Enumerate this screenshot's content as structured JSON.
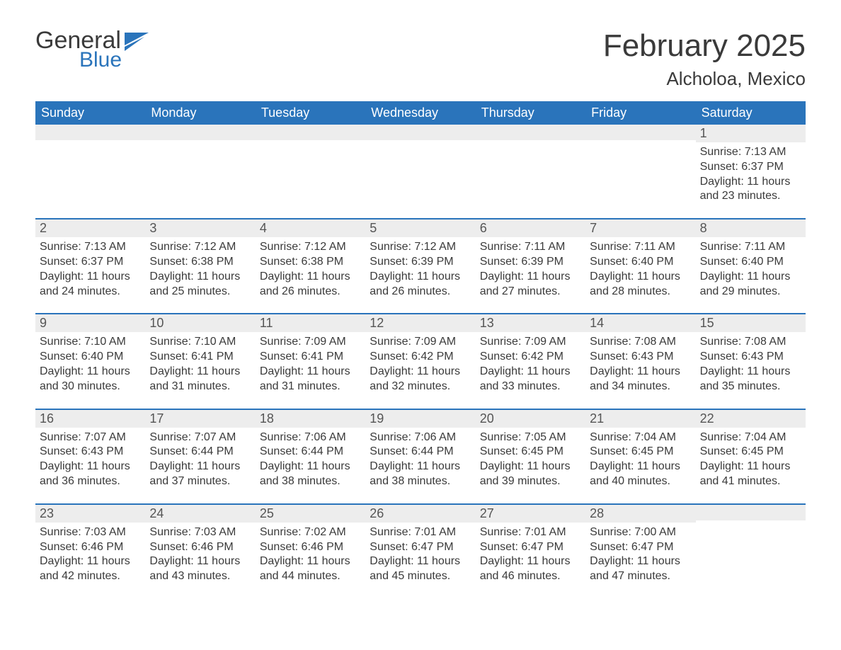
{
  "brand": {
    "general": "General",
    "blue": "Blue",
    "flag_color": "#2a74bb"
  },
  "title": {
    "month": "February 2025",
    "location": "Alcholoa, Mexico"
  },
  "colors": {
    "header_bg": "#2a74bb",
    "header_text": "#ffffff",
    "daynum_bg": "#ededed",
    "body_text": "#3a3a3a",
    "week_divider": "#2a74bb",
    "page_bg": "#ffffff"
  },
  "typography": {
    "month_title_fontsize": 44,
    "location_fontsize": 26,
    "dow_fontsize": 18,
    "daynum_fontsize": 18,
    "body_fontsize": 16,
    "font_family": "Arial"
  },
  "layout": {
    "columns": 7,
    "rows": 5
  },
  "dow": [
    "Sunday",
    "Monday",
    "Tuesday",
    "Wednesday",
    "Thursday",
    "Friday",
    "Saturday"
  ],
  "weeks": [
    [
      null,
      null,
      null,
      null,
      null,
      null,
      {
        "n": "1",
        "sunrise": "Sunrise: 7:13 AM",
        "sunset": "Sunset: 6:37 PM",
        "d1": "Daylight: 11 hours",
        "d2": "and 23 minutes."
      }
    ],
    [
      {
        "n": "2",
        "sunrise": "Sunrise: 7:13 AM",
        "sunset": "Sunset: 6:37 PM",
        "d1": "Daylight: 11 hours",
        "d2": "and 24 minutes."
      },
      {
        "n": "3",
        "sunrise": "Sunrise: 7:12 AM",
        "sunset": "Sunset: 6:38 PM",
        "d1": "Daylight: 11 hours",
        "d2": "and 25 minutes."
      },
      {
        "n": "4",
        "sunrise": "Sunrise: 7:12 AM",
        "sunset": "Sunset: 6:38 PM",
        "d1": "Daylight: 11 hours",
        "d2": "and 26 minutes."
      },
      {
        "n": "5",
        "sunrise": "Sunrise: 7:12 AM",
        "sunset": "Sunset: 6:39 PM",
        "d1": "Daylight: 11 hours",
        "d2": "and 26 minutes."
      },
      {
        "n": "6",
        "sunrise": "Sunrise: 7:11 AM",
        "sunset": "Sunset: 6:39 PM",
        "d1": "Daylight: 11 hours",
        "d2": "and 27 minutes."
      },
      {
        "n": "7",
        "sunrise": "Sunrise: 7:11 AM",
        "sunset": "Sunset: 6:40 PM",
        "d1": "Daylight: 11 hours",
        "d2": "and 28 minutes."
      },
      {
        "n": "8",
        "sunrise": "Sunrise: 7:11 AM",
        "sunset": "Sunset: 6:40 PM",
        "d1": "Daylight: 11 hours",
        "d2": "and 29 minutes."
      }
    ],
    [
      {
        "n": "9",
        "sunrise": "Sunrise: 7:10 AM",
        "sunset": "Sunset: 6:40 PM",
        "d1": "Daylight: 11 hours",
        "d2": "and 30 minutes."
      },
      {
        "n": "10",
        "sunrise": "Sunrise: 7:10 AM",
        "sunset": "Sunset: 6:41 PM",
        "d1": "Daylight: 11 hours",
        "d2": "and 31 minutes."
      },
      {
        "n": "11",
        "sunrise": "Sunrise: 7:09 AM",
        "sunset": "Sunset: 6:41 PM",
        "d1": "Daylight: 11 hours",
        "d2": "and 31 minutes."
      },
      {
        "n": "12",
        "sunrise": "Sunrise: 7:09 AM",
        "sunset": "Sunset: 6:42 PM",
        "d1": "Daylight: 11 hours",
        "d2": "and 32 minutes."
      },
      {
        "n": "13",
        "sunrise": "Sunrise: 7:09 AM",
        "sunset": "Sunset: 6:42 PM",
        "d1": "Daylight: 11 hours",
        "d2": "and 33 minutes."
      },
      {
        "n": "14",
        "sunrise": "Sunrise: 7:08 AM",
        "sunset": "Sunset: 6:43 PM",
        "d1": "Daylight: 11 hours",
        "d2": "and 34 minutes."
      },
      {
        "n": "15",
        "sunrise": "Sunrise: 7:08 AM",
        "sunset": "Sunset: 6:43 PM",
        "d1": "Daylight: 11 hours",
        "d2": "and 35 minutes."
      }
    ],
    [
      {
        "n": "16",
        "sunrise": "Sunrise: 7:07 AM",
        "sunset": "Sunset: 6:43 PM",
        "d1": "Daylight: 11 hours",
        "d2": "and 36 minutes."
      },
      {
        "n": "17",
        "sunrise": "Sunrise: 7:07 AM",
        "sunset": "Sunset: 6:44 PM",
        "d1": "Daylight: 11 hours",
        "d2": "and 37 minutes."
      },
      {
        "n": "18",
        "sunrise": "Sunrise: 7:06 AM",
        "sunset": "Sunset: 6:44 PM",
        "d1": "Daylight: 11 hours",
        "d2": "and 38 minutes."
      },
      {
        "n": "19",
        "sunrise": "Sunrise: 7:06 AM",
        "sunset": "Sunset: 6:44 PM",
        "d1": "Daylight: 11 hours",
        "d2": "and 38 minutes."
      },
      {
        "n": "20",
        "sunrise": "Sunrise: 7:05 AM",
        "sunset": "Sunset: 6:45 PM",
        "d1": "Daylight: 11 hours",
        "d2": "and 39 minutes."
      },
      {
        "n": "21",
        "sunrise": "Sunrise: 7:04 AM",
        "sunset": "Sunset: 6:45 PM",
        "d1": "Daylight: 11 hours",
        "d2": "and 40 minutes."
      },
      {
        "n": "22",
        "sunrise": "Sunrise: 7:04 AM",
        "sunset": "Sunset: 6:45 PM",
        "d1": "Daylight: 11 hours",
        "d2": "and 41 minutes."
      }
    ],
    [
      {
        "n": "23",
        "sunrise": "Sunrise: 7:03 AM",
        "sunset": "Sunset: 6:46 PM",
        "d1": "Daylight: 11 hours",
        "d2": "and 42 minutes."
      },
      {
        "n": "24",
        "sunrise": "Sunrise: 7:03 AM",
        "sunset": "Sunset: 6:46 PM",
        "d1": "Daylight: 11 hours",
        "d2": "and 43 minutes."
      },
      {
        "n": "25",
        "sunrise": "Sunrise: 7:02 AM",
        "sunset": "Sunset: 6:46 PM",
        "d1": "Daylight: 11 hours",
        "d2": "and 44 minutes."
      },
      {
        "n": "26",
        "sunrise": "Sunrise: 7:01 AM",
        "sunset": "Sunset: 6:47 PM",
        "d1": "Daylight: 11 hours",
        "d2": "and 45 minutes."
      },
      {
        "n": "27",
        "sunrise": "Sunrise: 7:01 AM",
        "sunset": "Sunset: 6:47 PM",
        "d1": "Daylight: 11 hours",
        "d2": "and 46 minutes."
      },
      {
        "n": "28",
        "sunrise": "Sunrise: 7:00 AM",
        "sunset": "Sunset: 6:47 PM",
        "d1": "Daylight: 11 hours",
        "d2": "and 47 minutes."
      },
      null
    ]
  ]
}
